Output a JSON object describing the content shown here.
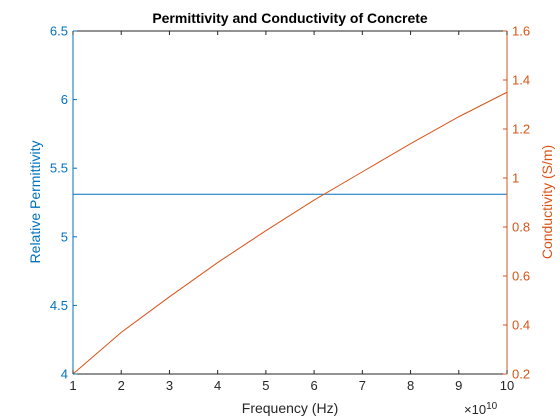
{
  "colors": {
    "left": "#0072BD",
    "right": "#D95319",
    "axis": "#262626",
    "background": "#ffffff"
  },
  "chart_data": {
    "type": "line",
    "title": "Permittivity and Conductivity of Concrete",
    "xlabel": "Frequency (Hz)",
    "x_exponent_label": "×10",
    "x_exponent_power": "10",
    "xlim": [
      1,
      10
    ],
    "x_ticks": [
      1,
      2,
      3,
      4,
      5,
      6,
      7,
      8,
      9,
      10
    ],
    "x_tick_labels": [
      "1",
      "2",
      "3",
      "4",
      "5",
      "6",
      "7",
      "8",
      "9",
      "10"
    ],
    "left_axis": {
      "ylabel": "Relative Permittivity",
      "ylim": [
        4,
        6.5
      ],
      "ticks": [
        4,
        4.5,
        5,
        5.5,
        6,
        6.5
      ],
      "tick_labels": [
        "4",
        "4.5",
        "5",
        "5.5",
        "6",
        "6.5"
      ],
      "color": "#0072BD"
    },
    "right_axis": {
      "ylabel": "Conductivity (S/m)",
      "ylim": [
        0.2,
        1.6
      ],
      "ticks": [
        0.2,
        0.4,
        0.6,
        0.8,
        1,
        1.2,
        1.4,
        1.6
      ],
      "tick_labels": [
        "0.2",
        "0.4",
        "0.6",
        "0.8",
        "1",
        "1.2",
        "1.4",
        "1.6"
      ],
      "color": "#D95319"
    },
    "series": [
      {
        "axis": "left",
        "color": "#0072BD",
        "x": [
          1,
          10
        ],
        "y": [
          5.31,
          5.31
        ]
      },
      {
        "axis": "right",
        "color": "#D95319",
        "x": [
          1,
          2,
          3,
          4,
          5,
          6,
          7,
          8,
          9,
          10
        ],
        "y": [
          0.2,
          0.37,
          0.515,
          0.655,
          0.785,
          0.91,
          1.025,
          1.14,
          1.25,
          1.35
        ]
      }
    ],
    "grid": false,
    "legend": "none"
  }
}
